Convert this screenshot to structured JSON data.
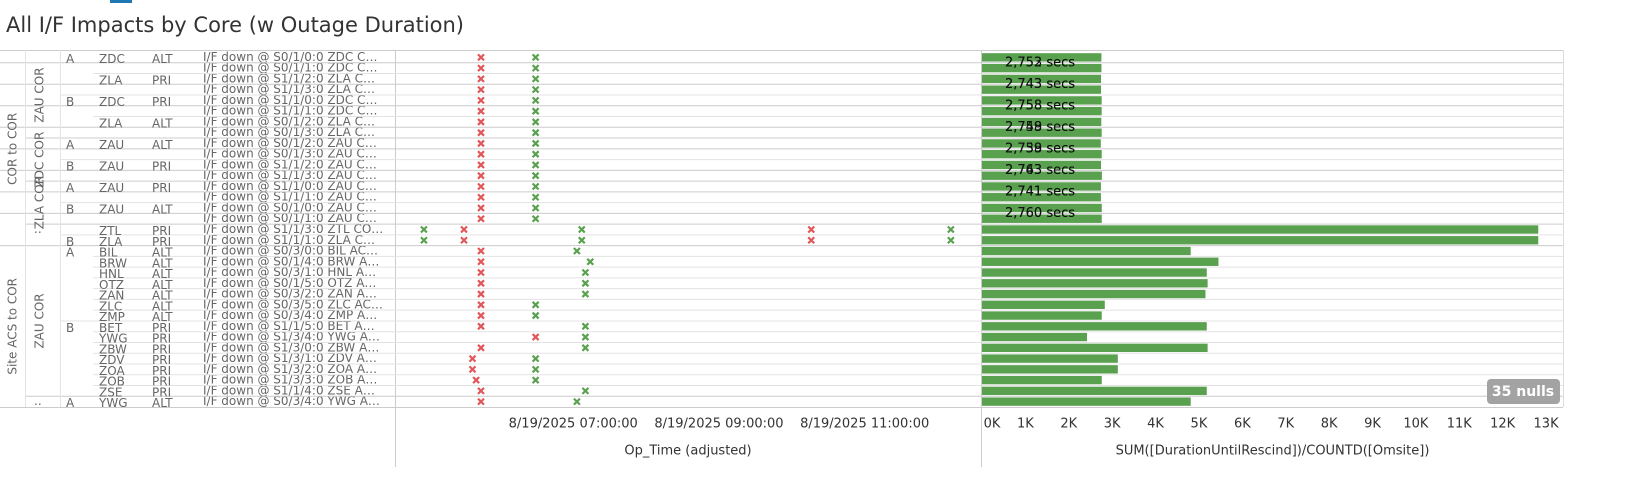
{
  "title": "All I/F Impacts by Core (w Outage Duration)",
  "rows": [
    {
      "kind": "COR to COR",
      "core": "ZAU COR",
      "side": "A",
      "remote": "ZDC",
      "link": "ALT",
      "interface": "I/F down @ S0/1/0:0 ZDC C…"
    },
    {
      "kind": "COR to COR",
      "core": "ZAU COR",
      "side": "A",
      "remote": "ZDC",
      "link": "ALT",
      "interface": "I/F down @ S0/1/1:0 ZDC C…"
    },
    {
      "kind": "COR to COR",
      "core": "ZAU COR",
      "side": "A",
      "remote": "ZLA",
      "link": "PRI",
      "interface": "I/F down @ S1/1/2:0 ZLA C…"
    },
    {
      "kind": "COR to COR",
      "core": "ZAU COR",
      "side": "A",
      "remote": "ZLA",
      "link": "PRI",
      "interface": "I/F down @ S1/1/3:0 ZLA C…"
    },
    {
      "kind": "COR to COR",
      "core": "ZAU COR",
      "side": "B",
      "remote": "ZDC",
      "link": "PRI",
      "interface": "I/F down @ S1/1/0:0 ZDC C…"
    },
    {
      "kind": "COR to COR",
      "core": "ZAU COR",
      "side": "B",
      "remote": "ZDC",
      "link": "PRI",
      "interface": "I/F down @ S1/1/1:0 ZDC C…"
    },
    {
      "kind": "COR to COR",
      "core": "ZAU COR",
      "side": "B",
      "remote": "ZLA",
      "link": "ALT",
      "interface": "I/F down @ S0/1/2:0 ZLA C…"
    },
    {
      "kind": "COR to COR",
      "core": "ZAU COR",
      "side": "B",
      "remote": "ZLA",
      "link": "ALT",
      "interface": "I/F down @ S0/1/3:0 ZLA C…"
    },
    {
      "kind": "COR to COR",
      "core": "ZDC COR",
      "side": "A",
      "remote": "ZAU",
      "link": "ALT",
      "interface": "I/F down @ S0/1/2:0 ZAU C…"
    },
    {
      "kind": "COR to COR",
      "core": "ZDC COR",
      "side": "A",
      "remote": "ZAU",
      "link": "ALT",
      "interface": "I/F down @ S0/1/3:0 ZAU C…"
    },
    {
      "kind": "COR to COR",
      "core": "ZDC COR",
      "side": "B",
      "remote": "ZAU",
      "link": "PRI",
      "interface": "I/F down @ S1/1/2:0 ZAU C…"
    },
    {
      "kind": "COR to COR",
      "core": "ZDC COR",
      "side": "B",
      "remote": "ZAU",
      "link": "PRI",
      "interface": "I/F down @ S1/1/3:0 ZAU C…"
    },
    {
      "kind": "COR to COR",
      "core": "ZLA COR",
      "side": "A",
      "remote": "ZAU",
      "link": "PRI",
      "interface": "I/F down @ S1/1/0:0 ZAU C…"
    },
    {
      "kind": "COR to COR",
      "core": "ZLA COR",
      "side": "A",
      "remote": "ZAU",
      "link": "PRI",
      "interface": "I/F down @ S1/1/1:0 ZAU C…"
    },
    {
      "kind": "COR to COR",
      "core": "ZLA COR",
      "side": "B",
      "remote": "ZAU",
      "link": "ALT",
      "interface": "I/F down @ S0/1/0:0 ZAU C…"
    },
    {
      "kind": "COR to COR",
      "core": "ZLA COR",
      "side": "B",
      "remote": "ZAU",
      "link": "ALT",
      "interface": "I/F down @ S0/1/1:0 ZAU C…"
    },
    {
      "kind": "COR to COR",
      "core": "..",
      "side": null,
      "remote": "ZTL",
      "link": "PRI",
      "interface": "I/F down @ S1/1/3:0 ZTL CO…"
    },
    {
      "kind": "COR to COR",
      "core": "..",
      "side": "B",
      "remote": "ZLA",
      "link": "PRI",
      "interface": "I/F down @ S1/1/1:0 ZLA C…"
    },
    {
      "kind": "Site ACS to COR",
      "core": "ZAU COR",
      "side": "A",
      "remote": "BIL",
      "link": "ALT",
      "interface": "I/F down @ S0/3/0:0 BIL AC…"
    },
    {
      "kind": "Site ACS to COR",
      "core": "ZAU COR",
      "side": "A",
      "remote": "BRW",
      "link": "ALT",
      "interface": "I/F down @ S0/1/4:0 BRW A…"
    },
    {
      "kind": "Site ACS to COR",
      "core": "ZAU COR",
      "side": "A",
      "remote": "HNL",
      "link": "ALT",
      "interface": "I/F down @ S0/3/1:0 HNL A…"
    },
    {
      "kind": "Site ACS to COR",
      "core": "ZAU COR",
      "side": "A",
      "remote": "OTZ",
      "link": "ALT",
      "interface": "I/F down @ S0/1/5:0 OTZ A…"
    },
    {
      "kind": "Site ACS to COR",
      "core": "ZAU COR",
      "side": "A",
      "remote": "ZAN",
      "link": "ALT",
      "interface": "I/F down @ S0/3/2:0 ZAN A…"
    },
    {
      "kind": "Site ACS to COR",
      "core": "ZAU COR",
      "side": "A",
      "remote": "ZLC",
      "link": "ALT",
      "interface": "I/F down @ S0/3/5:0 ZLC AC…"
    },
    {
      "kind": "Site ACS to COR",
      "core": "ZAU COR",
      "side": "A",
      "remote": "ZMP",
      "link": "ALT",
      "interface": "I/F down @ S0/3/4:0 ZMP A…"
    },
    {
      "kind": "Site ACS to COR",
      "core": "ZAU COR",
      "side": "B",
      "remote": "BET",
      "link": "PRI",
      "interface": "I/F down @ S1/1/5:0 BET A…"
    },
    {
      "kind": "Site ACS to COR",
      "core": "ZAU COR",
      "side": "B",
      "remote": "YWG",
      "link": "PRI",
      "interface": "I/F down @ S1/3/4:0 YWG A…"
    },
    {
      "kind": "Site ACS to COR",
      "core": "ZAU COR",
      "side": "B",
      "remote": "ZBW",
      "link": "PRI",
      "interface": "I/F down @ S1/3/0:0 ZBW A…"
    },
    {
      "kind": "Site ACS to COR",
      "core": "ZAU COR",
      "side": "B",
      "remote": "ZDV",
      "link": "PRI",
      "interface": "I/F down @ S1/3/1:0 ZDV A…"
    },
    {
      "kind": "Site ACS to COR",
      "core": "ZAU COR",
      "side": "B",
      "remote": "ZOA",
      "link": "PRI",
      "interface": "I/F down @ S1/3/2:0 ZOA A…"
    },
    {
      "kind": "Site ACS to COR",
      "core": "ZAU COR",
      "side": "B",
      "remote": "ZOB",
      "link": "PRI",
      "interface": "I/F down @ S1/3/3:0 ZOB A…"
    },
    {
      "kind": "Site ACS to COR",
      "core": "ZAU COR",
      "side": "B",
      "remote": "ZSE",
      "link": "PRI",
      "interface": "I/F down @ S1/1/4:0 ZSE A…"
    },
    {
      "kind": "Site ACS to COR",
      "core": "..",
      "side": "A",
      "remote": "YWG",
      "link": "ALT",
      "interface": "I/F down @ S0/3/4:0 YWG A…"
    }
  ],
  "chart_data": [
    {
      "type": "timeline",
      "x_label": "Op_Time (adjusted)",
      "xlim": [
        "2025-08-19T04:34:00",
        "2025-08-19T12:35:00"
      ],
      "xticks": [
        {
          "value": "2025-08-19T07:00:00",
          "label": "8/19/2025 07:00:00"
        },
        {
          "value": "2025-08-19T09:00:00",
          "label": "8/19/2025 09:00:00"
        },
        {
          "value": "2025-08-19T11:00:00",
          "label": "8/19/2025 11:00:00"
        }
      ],
      "colors": {
        "down": "#e15759",
        "up": "#59a14f"
      },
      "marks": [
        {
          "down": [
            "2025-08-19T05:44:00"
          ],
          "up": [
            "2025-08-19T06:29:00"
          ]
        },
        {
          "down": [
            "2025-08-19T05:44:00"
          ],
          "up": [
            "2025-08-19T06:29:00"
          ]
        },
        {
          "down": [
            "2025-08-19T05:44:00"
          ],
          "up": [
            "2025-08-19T06:29:00"
          ]
        },
        {
          "down": [
            "2025-08-19T05:44:00"
          ],
          "up": [
            "2025-08-19T06:29:00"
          ]
        },
        {
          "down": [
            "2025-08-19T05:44:00"
          ],
          "up": [
            "2025-08-19T06:29:00"
          ]
        },
        {
          "down": [
            "2025-08-19T05:44:00"
          ],
          "up": [
            "2025-08-19T06:29:00"
          ]
        },
        {
          "down": [
            "2025-08-19T05:44:00"
          ],
          "up": [
            "2025-08-19T06:29:00"
          ]
        },
        {
          "down": [
            "2025-08-19T05:44:00"
          ],
          "up": [
            "2025-08-19T06:29:00"
          ]
        },
        {
          "down": [
            "2025-08-19T05:44:00"
          ],
          "up": [
            "2025-08-19T06:29:00"
          ]
        },
        {
          "down": [
            "2025-08-19T05:44:00"
          ],
          "up": [
            "2025-08-19T06:29:00"
          ]
        },
        {
          "down": [
            "2025-08-19T05:44:00"
          ],
          "up": [
            "2025-08-19T06:29:00"
          ]
        },
        {
          "down": [
            "2025-08-19T05:44:00"
          ],
          "up": [
            "2025-08-19T06:29:00"
          ]
        },
        {
          "down": [
            "2025-08-19T05:44:00"
          ],
          "up": [
            "2025-08-19T06:29:00"
          ]
        },
        {
          "down": [
            "2025-08-19T05:44:00"
          ],
          "up": [
            "2025-08-19T06:29:00"
          ]
        },
        {
          "down": [
            "2025-08-19T05:44:00"
          ],
          "up": [
            "2025-08-19T06:29:00"
          ]
        },
        {
          "down": [
            "2025-08-19T05:44:00"
          ],
          "up": [
            "2025-08-19T06:29:00"
          ]
        },
        {
          "down": [
            "2025-08-19T05:30:00",
            "2025-08-19T10:16:00"
          ],
          "up": [
            "2025-08-19T04:57:00",
            "2025-08-19T07:07:00",
            "2025-08-19T12:11:00"
          ]
        },
        {
          "down": [
            "2025-08-19T05:30:00",
            "2025-08-19T10:16:00"
          ],
          "up": [
            "2025-08-19T04:57:00",
            "2025-08-19T07:07:00",
            "2025-08-19T12:11:00"
          ]
        },
        {
          "down": [
            "2025-08-19T05:44:00"
          ],
          "up": [
            "2025-08-19T07:03:00"
          ]
        },
        {
          "down": [
            "2025-08-19T05:44:00"
          ],
          "up": [
            "2025-08-19T07:14:00"
          ]
        },
        {
          "down": [
            "2025-08-19T05:44:00"
          ],
          "up": [
            "2025-08-19T07:10:00"
          ]
        },
        {
          "down": [
            "2025-08-19T05:44:00"
          ],
          "up": [
            "2025-08-19T07:10:00"
          ]
        },
        {
          "down": [
            "2025-08-19T05:44:00"
          ],
          "up": [
            "2025-08-19T07:10:00"
          ]
        },
        {
          "down": [
            "2025-08-19T05:44:00"
          ],
          "up": [
            "2025-08-19T06:29:00"
          ]
        },
        {
          "down": [
            "2025-08-19T05:44:00"
          ],
          "up": [
            "2025-08-19T06:29:00"
          ]
        },
        {
          "down": [
            "2025-08-19T05:44:00"
          ],
          "up": [
            "2025-08-19T07:10:00"
          ]
        },
        {
          "down": [
            "2025-08-19T06:29:00"
          ],
          "up": [
            "2025-08-19T07:10:00"
          ]
        },
        {
          "down": [
            "2025-08-19T05:44:00"
          ],
          "up": [
            "2025-08-19T07:10:00"
          ]
        },
        {
          "down": [
            "2025-08-19T05:37:00"
          ],
          "up": [
            "2025-08-19T06:29:00"
          ]
        },
        {
          "down": [
            "2025-08-19T05:37:00"
          ],
          "up": [
            "2025-08-19T06:29:00"
          ]
        },
        {
          "down": [
            "2025-08-19T05:40:00"
          ],
          "up": [
            "2025-08-19T06:29:00"
          ]
        },
        {
          "down": [
            "2025-08-19T05:44:00"
          ],
          "up": [
            "2025-08-19T07:10:00"
          ]
        },
        {
          "down": [
            "2025-08-19T05:44:00"
          ],
          "up": [
            "2025-08-19T07:03:00"
          ]
        }
      ]
    },
    {
      "type": "bar",
      "x_label": "SUM([DurationUntilRescind])/COUNTD([Omsite])",
      "color": "#59a14f",
      "xlim": [
        0,
        13390
      ],
      "xticks": [
        {
          "value": 0,
          "label": "0K"
        },
        {
          "value": 1000,
          "label": "1K"
        },
        {
          "value": 2000,
          "label": "2K"
        },
        {
          "value": 3000,
          "label": "3K"
        },
        {
          "value": 4000,
          "label": "4K"
        },
        {
          "value": 5000,
          "label": "5K"
        },
        {
          "value": 6000,
          "label": "6K"
        },
        {
          "value": 7000,
          "label": "7K"
        },
        {
          "value": 8000,
          "label": "8K"
        },
        {
          "value": 9000,
          "label": "9K"
        },
        {
          "value": 10000,
          "label": "10K"
        },
        {
          "value": 11000,
          "label": "11K"
        },
        {
          "value": 12000,
          "label": "12K"
        },
        {
          "value": 13000,
          "label": "13K"
        }
      ],
      "values": [
        2752,
        2753,
        2743,
        2743,
        2758,
        2758,
        2749,
        2758,
        2738,
        2759,
        2743,
        2763,
        2741,
        2741,
        2760,
        2760,
        12820,
        12820,
        4810,
        5450,
        5180,
        5200,
        5150,
        2830,
        2760,
        5180,
        2420,
        5200,
        3130,
        3130,
        2760,
        5180,
        4810
      ],
      "value_labels": [
        "2,752 secs",
        "2,753 secs",
        "2,743 secs",
        "2,743 secs",
        "2,758 secs",
        "2,758 secs",
        "2,749 secs",
        "2,758 secs",
        "2,738 secs",
        "2,759 secs",
        "2,743 secs",
        "2,763 secs",
        "2,741 secs",
        "2,741 secs",
        "2,760 secs",
        "2,760 secs",
        null,
        null,
        null,
        null,
        null,
        null,
        null,
        null,
        null,
        null,
        null,
        null,
        null,
        null,
        null,
        null,
        null
      ],
      "nulls_label": "35 nulls"
    }
  ]
}
